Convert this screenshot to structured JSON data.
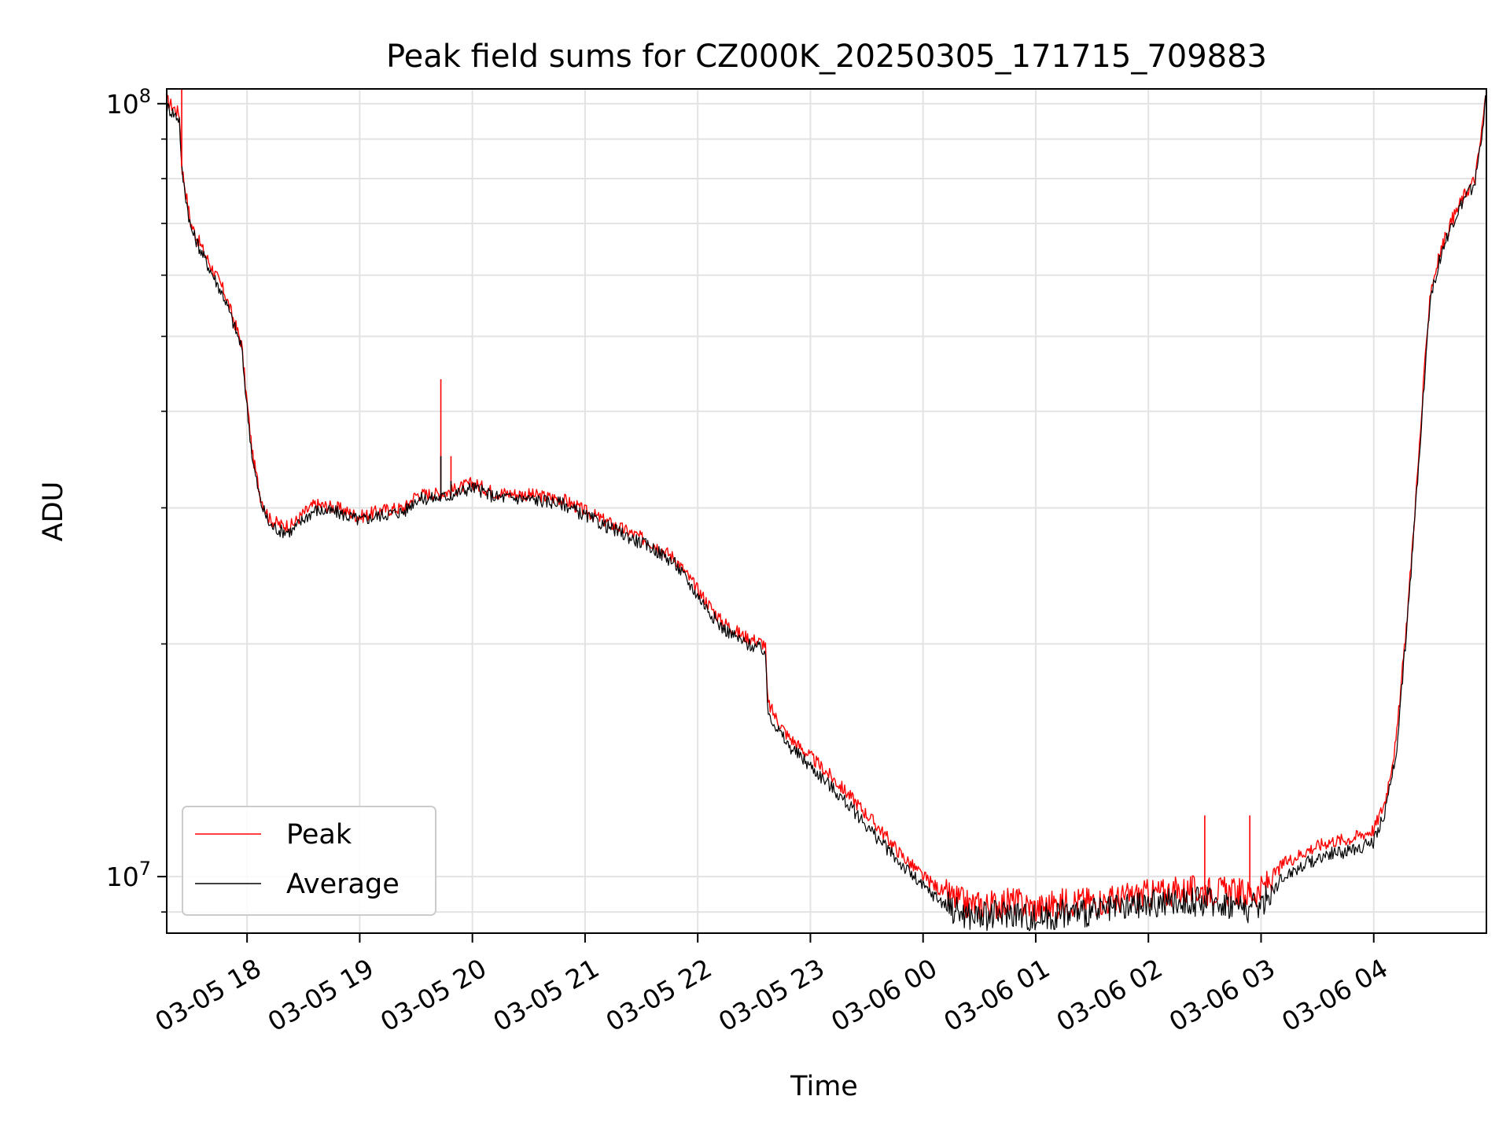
{
  "chart_data": {
    "type": "line",
    "title": "Peak field sums for CZ000K_20250305_171715_709883",
    "xlabel": "Time",
    "ylabel": "ADU",
    "yscale": "log",
    "ylim": [
      8450000,
      104500000
    ],
    "xlim_hours": [
      17.287,
      29.0
    ],
    "y_ticks": [
      {
        "value": 10000000,
        "base": "10",
        "exp": "7"
      },
      {
        "value": 100000000,
        "base": "10",
        "exp": "8"
      }
    ],
    "y_minor_ticks": [
      9000000,
      20000000,
      30000000,
      40000000,
      50000000,
      60000000,
      70000000,
      80000000,
      90000000
    ],
    "x_ticks": [
      {
        "hour": 18,
        "label": "03-05 18"
      },
      {
        "hour": 19,
        "label": "03-05 19"
      },
      {
        "hour": 20,
        "label": "03-05 20"
      },
      {
        "hour": 21,
        "label": "03-05 21"
      },
      {
        "hour": 22,
        "label": "03-05 22"
      },
      {
        "hour": 23,
        "label": "03-05 23"
      },
      {
        "hour": 24,
        "label": "03-06 00"
      },
      {
        "hour": 25,
        "label": "03-06 01"
      },
      {
        "hour": 26,
        "label": "03-06 02"
      },
      {
        "hour": 27,
        "label": "03-06 03"
      },
      {
        "hour": 28,
        "label": "03-06 04"
      }
    ],
    "grid": true,
    "legend": {
      "placement": "lower-left"
    },
    "series": [
      {
        "name": "Peak",
        "color": "#ff0000",
        "x": [
          17.29,
          17.4,
          17.42,
          17.5,
          17.6,
          17.8,
          17.95,
          18.0,
          18.05,
          18.12,
          18.2,
          18.3,
          18.4,
          18.5,
          18.6,
          18.8,
          19.0,
          19.2,
          19.4,
          19.5,
          19.7,
          19.8,
          20.0,
          20.2,
          20.5,
          20.8,
          21.0,
          21.3,
          21.6,
          21.8,
          22.0,
          22.2,
          22.4,
          22.6,
          22.62,
          22.7,
          22.8,
          23.0,
          23.2,
          23.4,
          23.6,
          23.8,
          24.0,
          24.2,
          24.4,
          24.6,
          24.8,
          25.0,
          25.3,
          25.6,
          26.0,
          26.3,
          26.6,
          26.9,
          27.0,
          27.2,
          27.4,
          27.6,
          27.8,
          28.0,
          28.1,
          28.2,
          28.3,
          28.4,
          28.45,
          28.5,
          28.6,
          28.7,
          28.8,
          28.9,
          28.95,
          29.0
        ],
        "y": [
          101000000,
          97000000,
          83000000,
          70000000,
          65000000,
          57000000,
          49000000,
          41000000,
          35000000,
          31000000,
          29000000,
          28500000,
          28500000,
          29500000,
          30300000,
          30000000,
          29200000,
          29800000,
          30000000,
          31200000,
          31300000,
          31500000,
          32300000,
          31400000,
          31200000,
          30800000,
          29700000,
          28300000,
          27000000,
          25800000,
          23500000,
          21500000,
          20500000,
          20000000,
          16800000,
          16000000,
          15200000,
          14300000,
          13400000,
          12500000,
          11600000,
          10700000,
          10000000,
          9500000,
          9200000,
          9200000,
          9300000,
          9100000,
          9300000,
          9300000,
          9500000,
          9600000,
          9600000,
          9500000,
          9600000,
          10400000,
          10800000,
          11100000,
          11200000,
          11500000,
          12500000,
          15000000,
          22000000,
          35000000,
          45000000,
          57000000,
          65000000,
          71000000,
          76000000,
          80000000,
          90000000,
          104000000
        ]
      },
      {
        "name": "Average",
        "color": "#000000",
        "x": [
          17.29,
          17.4,
          17.42,
          17.5,
          17.6,
          17.8,
          17.95,
          18.0,
          18.05,
          18.12,
          18.2,
          18.3,
          18.4,
          18.5,
          18.6,
          18.8,
          19.0,
          19.2,
          19.4,
          19.5,
          19.7,
          19.8,
          20.0,
          20.2,
          20.5,
          20.8,
          21.0,
          21.3,
          21.6,
          21.8,
          22.0,
          22.2,
          22.4,
          22.6,
          22.62,
          22.7,
          22.8,
          23.0,
          23.2,
          23.4,
          23.6,
          23.8,
          24.0,
          24.2,
          24.4,
          24.6,
          24.8,
          25.0,
          25.3,
          25.6,
          26.0,
          26.3,
          26.6,
          26.9,
          27.0,
          27.2,
          27.4,
          27.6,
          27.8,
          28.0,
          28.1,
          28.2,
          28.3,
          28.4,
          28.45,
          28.5,
          28.6,
          28.7,
          28.8,
          28.9,
          28.95,
          29.0
        ],
        "y": [
          99000000,
          95500000,
          82000000,
          69000000,
          64000000,
          56000000,
          48500000,
          40500000,
          34500000,
          30500000,
          28500000,
          28000000,
          28000000,
          29000000,
          29800000,
          29600000,
          28900000,
          29400000,
          29700000,
          30800000,
          30900000,
          31100000,
          31900000,
          31000000,
          30800000,
          30400000,
          29300000,
          27900000,
          26600000,
          25400000,
          23100000,
          21100000,
          20100000,
          19600000,
          16400000,
          15600000,
          14800000,
          13900000,
          13000000,
          12100000,
          11200000,
          10400000,
          9700000,
          9200000,
          8900000,
          8900000,
          9000000,
          8800000,
          9000000,
          9000000,
          9200000,
          9300000,
          9300000,
          9100000,
          9200000,
          10000000,
          10400000,
          10700000,
          10800000,
          11100000,
          12100000,
          14500000,
          21500000,
          34500000,
          44000000,
          56000000,
          64000000,
          70000000,
          75000000,
          79000000,
          89000000,
          103000000
        ]
      }
    ],
    "spikes": [
      {
        "series": "Peak",
        "x": 19.72,
        "y": 44000000
      },
      {
        "series": "Peak",
        "x": 19.81,
        "y": 35000000
      },
      {
        "series": "Peak",
        "x": 17.42,
        "y": 105000000
      },
      {
        "series": "Peak",
        "x": 26.5,
        "y": 12000000
      },
      {
        "series": "Peak",
        "x": 26.9,
        "y": 12000000
      },
      {
        "series": "Average",
        "x": 19.72,
        "y": 35000000
      },
      {
        "series": "Average",
        "x": 19.81,
        "y": 32500000
      }
    ]
  }
}
